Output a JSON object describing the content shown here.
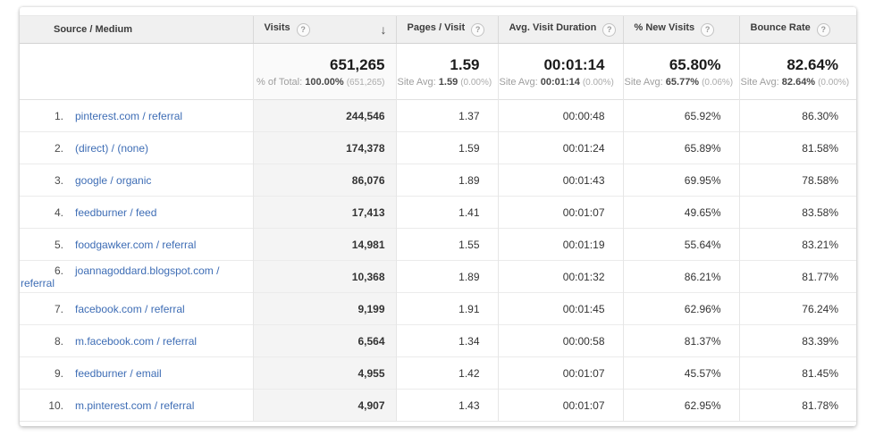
{
  "colors": {
    "link": "#3e6db5",
    "header_bg": "#f0f0f0",
    "sorted_col_bg": "#f4f4f4"
  },
  "headers": {
    "source": "Source / Medium",
    "visits": "Visits",
    "pages": "Pages / Visit",
    "duration": "Avg. Visit Duration",
    "new_visits": "% New Visits",
    "bounce": "Bounce Rate",
    "help_glyph": "?",
    "sort_arrow": "↓"
  },
  "summary": {
    "visits": {
      "main": "651,265",
      "prefix": "% of Total:",
      "bold": "100.00%",
      "paren": "(651,265)"
    },
    "pages": {
      "main": "1.59",
      "prefix": "Site Avg:",
      "bold": "1.59",
      "paren": "(0.00%)"
    },
    "duration": {
      "main": "00:01:14",
      "prefix": "Site Avg:",
      "bold": "00:01:14",
      "paren": "(0.00%)"
    },
    "new_visits": {
      "main": "65.80%",
      "prefix": "Site Avg:",
      "bold": "65.77%",
      "paren": "(0.06%)"
    },
    "bounce": {
      "main": "82.64%",
      "prefix": "Site Avg:",
      "bold": "82.64%",
      "paren": "(0.00%)"
    }
  },
  "rows": [
    {
      "rank": "1.",
      "source": "pinterest.com / referral",
      "visits": "244,546",
      "pages": "1.37",
      "duration": "00:00:48",
      "new_visits": "65.92%",
      "bounce": "86.30%"
    },
    {
      "rank": "2.",
      "source": "(direct) / (none)",
      "visits": "174,378",
      "pages": "1.59",
      "duration": "00:01:24",
      "new_visits": "65.89%",
      "bounce": "81.58%"
    },
    {
      "rank": "3.",
      "source": "google / organic",
      "visits": "86,076",
      "pages": "1.89",
      "duration": "00:01:43",
      "new_visits": "69.95%",
      "bounce": "78.58%"
    },
    {
      "rank": "4.",
      "source": "feedburner / feed",
      "visits": "17,413",
      "pages": "1.41",
      "duration": "00:01:07",
      "new_visits": "49.65%",
      "bounce": "83.58%"
    },
    {
      "rank": "5.",
      "source": "foodgawker.com / referral",
      "visits": "14,981",
      "pages": "1.55",
      "duration": "00:01:19",
      "new_visits": "55.64%",
      "bounce": "83.21%"
    },
    {
      "rank": "6.",
      "source": "joannagoddard.blogspot.com / referral",
      "visits": "10,368",
      "pages": "1.89",
      "duration": "00:01:32",
      "new_visits": "86.21%",
      "bounce": "81.77%"
    },
    {
      "rank": "7.",
      "source": "facebook.com / referral",
      "visits": "9,199",
      "pages": "1.91",
      "duration": "00:01:45",
      "new_visits": "62.96%",
      "bounce": "76.24%"
    },
    {
      "rank": "8.",
      "source": "m.facebook.com / referral",
      "visits": "6,564",
      "pages": "1.34",
      "duration": "00:00:58",
      "new_visits": "81.37%",
      "bounce": "83.39%"
    },
    {
      "rank": "9.",
      "source": "feedburner / email",
      "visits": "4,955",
      "pages": "1.42",
      "duration": "00:01:07",
      "new_visits": "45.57%",
      "bounce": "81.45%"
    },
    {
      "rank": "10.",
      "source": "m.pinterest.com / referral",
      "visits": "4,907",
      "pages": "1.43",
      "duration": "00:01:07",
      "new_visits": "62.95%",
      "bounce": "81.78%"
    }
  ]
}
